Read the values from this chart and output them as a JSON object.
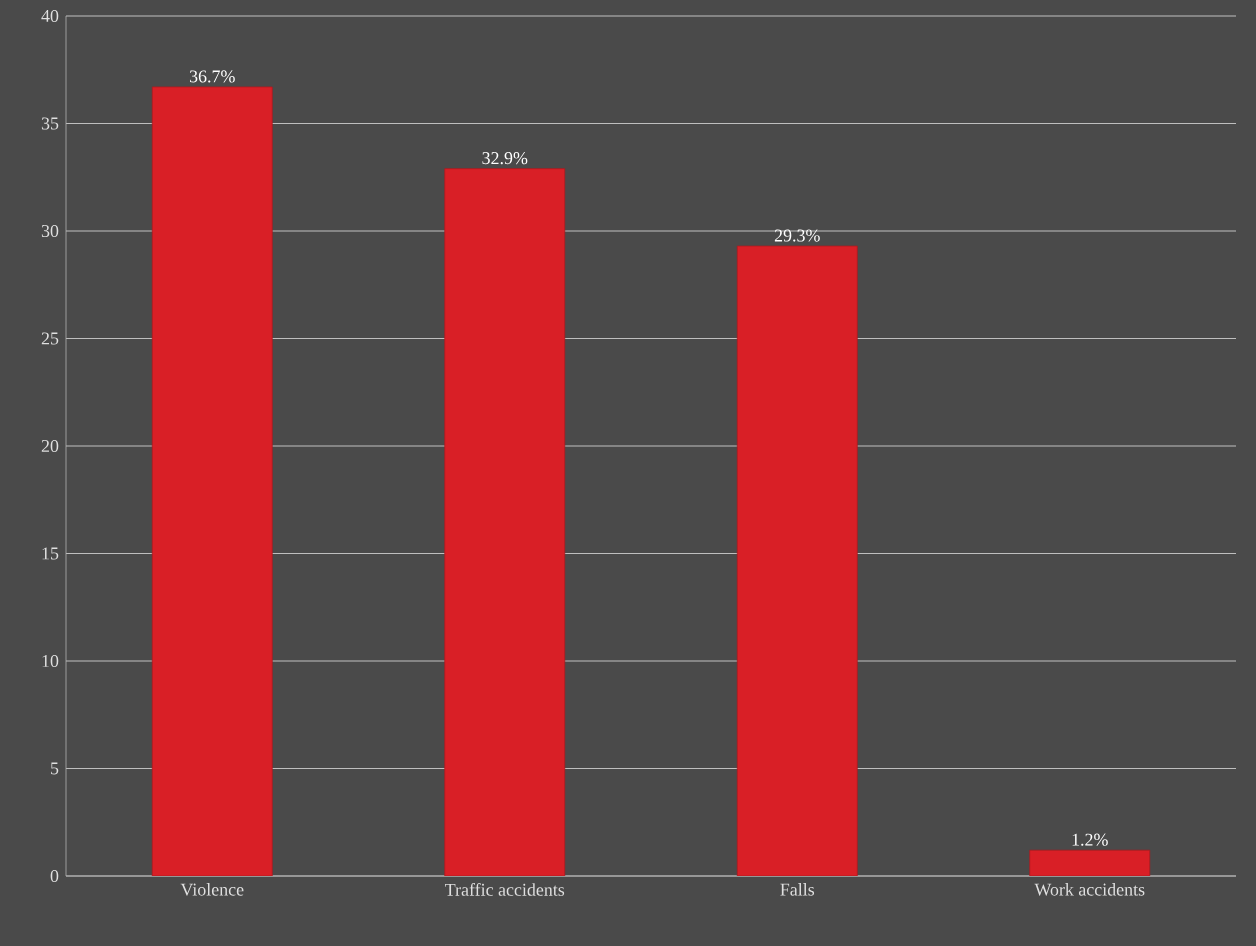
{
  "chart_data": {
    "type": "bar",
    "categories": [
      "Violence",
      "Traffic accidents",
      "Falls",
      "Work accidents"
    ],
    "values": [
      36.7,
      32.9,
      29.3,
      1.2
    ],
    "value_labels": [
      "36.7%",
      "32.9%",
      "29.3%",
      "1.2%"
    ],
    "color": "#d91f26",
    "ylim": [
      0,
      40
    ],
    "yticks": [
      0,
      5,
      10,
      15,
      20,
      25,
      30,
      35,
      40
    ],
    "grid": "y"
  }
}
